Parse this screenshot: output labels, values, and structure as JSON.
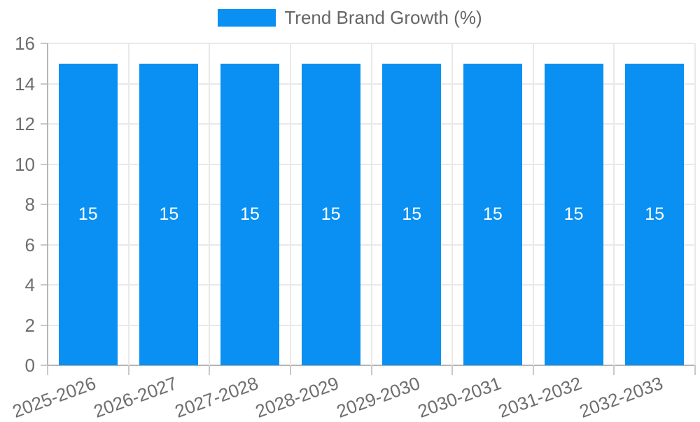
{
  "chart_data": {
    "type": "bar",
    "title": "",
    "categories": [
      "2025-2026",
      "2026-2027",
      "2027-2028",
      "2028-2029",
      "2029-2030",
      "2030-2031",
      "2031-2032",
      "2032-2033"
    ],
    "series": [
      {
        "name": "Trend Brand Growth (%)",
        "values": [
          15,
          15,
          15,
          15,
          15,
          15,
          15,
          15
        ]
      }
    ],
    "bar_value_labels": [
      "15",
      "15",
      "15",
      "15",
      "15",
      "15",
      "15",
      "15"
    ],
    "ylim": [
      0,
      16
    ],
    "yticks": [
      0,
      2,
      4,
      6,
      8,
      10,
      12,
      14,
      16
    ],
    "grid": "horizontal-and-vertical",
    "legend_position": "top",
    "colors": {
      "bar": "#0990f2",
      "grid": "#e9e9e9",
      "axis": "#b5b5b5",
      "tick": "#c9c9c9",
      "tick_text": "#6e6e6e",
      "legend_text": "#666666",
      "bar_label_text": "#ffffff",
      "background": "#ffffff"
    }
  }
}
